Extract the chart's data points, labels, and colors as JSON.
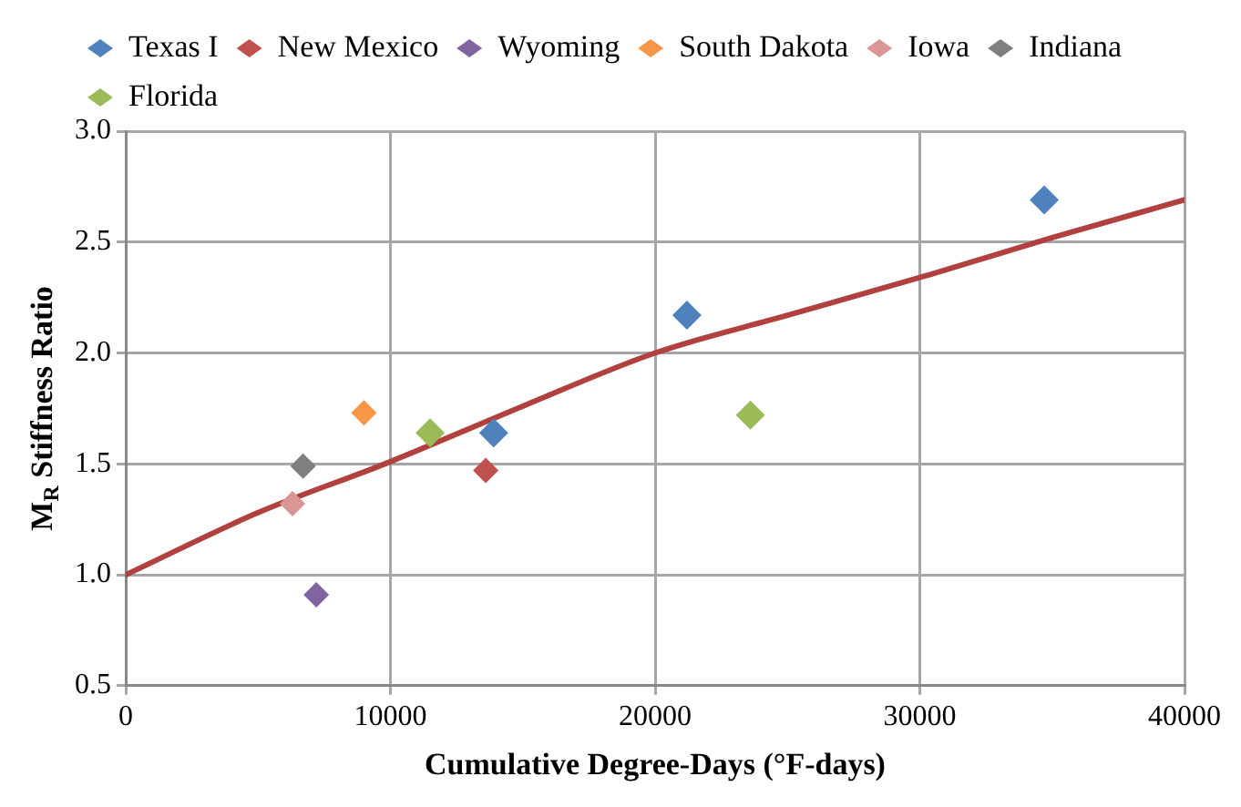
{
  "chart_data": {
    "type": "scatter",
    "xlabel": "Cumulative Degree-Days (°F-days)",
    "ylabel": "M$_{R}$ Stiffness Ratio",
    "xlim": [
      0,
      40000
    ],
    "xticks": [
      0,
      10000,
      20000,
      30000,
      40000
    ],
    "ylim": [
      0.5,
      3.0
    ],
    "yticks": [
      {
        "value": 0.5,
        "label": "0.5"
      },
      {
        "value": 1,
        "label": "1.0"
      },
      {
        "value": 1.5,
        "label": "1.5"
      },
      {
        "value": 2,
        "label": "2.0"
      },
      {
        "value": 2.5,
        "label": "2.5"
      },
      {
        "value": 3,
        "label": "3.0"
      }
    ],
    "grid": true,
    "legend": "top",
    "marker": "diamond",
    "series": [
      {
        "name": "Texas I",
        "color": "#4f81bd",
        "x": [
          13900,
          21200,
          34700
        ],
        "values": [
          1.64,
          2.17,
          2.69
        ]
      },
      {
        "name": "New Mexico",
        "color": "#c0504d",
        "x": [
          13600
        ],
        "values": [
          1.47
        ]
      },
      {
        "name": "Wyoming",
        "color": "#8064a2",
        "x": [
          7200
        ],
        "values": [
          0.91
        ]
      },
      {
        "name": "South Dakota",
        "color": "#f79646",
        "x": [
          9000
        ],
        "values": [
          1.73
        ]
      },
      {
        "name": "Iowa",
        "color": "#d99694",
        "x": [
          6300
        ],
        "values": [
          1.32
        ]
      },
      {
        "name": "Indiana",
        "color": "#7f7f7f",
        "x": [
          6700
        ],
        "values": [
          1.49
        ]
      },
      {
        "name": "Florida",
        "color": "#9bbb59",
        "x": [
          11500,
          23600
        ],
        "values": [
          1.64,
          1.72
        ]
      },
      {
        "type": "line",
        "color": "#b0413e",
        "marker": "none",
        "x": [
          0,
          5000,
          10000,
          15000,
          20000,
          25000,
          30000,
          35000,
          40000
        ],
        "values": [
          1.0,
          1.28,
          1.51,
          1.76,
          2.0,
          2.17,
          2.34,
          2.52,
          2.69
        ]
      }
    ]
  }
}
